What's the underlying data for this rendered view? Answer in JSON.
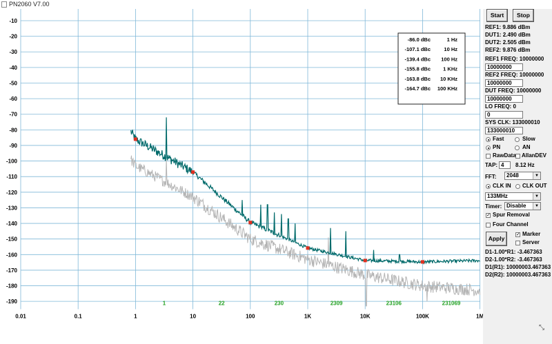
{
  "app": {
    "title": "PN2060 V7.00"
  },
  "plot": {
    "y_ticks": [
      "-10",
      "-20",
      "-30",
      "-40",
      "-50",
      "-60",
      "-70",
      "-80",
      "-90",
      "-100",
      "-110",
      "-120",
      "-130",
      "-140",
      "-150",
      "-160",
      "-170",
      "-180",
      "-190"
    ],
    "x_ticks": [
      "0.01",
      "0.1",
      "1",
      "10",
      "100",
      "1K",
      "10K",
      "100K",
      "1M"
    ],
    "green_labels": [
      "1",
      "22",
      "230",
      "2309",
      "23106",
      "231069"
    ],
    "table": [
      {
        "value": "-86.0 dBc",
        "freq": "1 Hz"
      },
      {
        "value": "-107.1 dBc",
        "freq": "10 Hz"
      },
      {
        "value": "-139.4 dBc",
        "freq": "100 Hz"
      },
      {
        "value": "-155.8 dBc",
        "freq": "1 KHz"
      },
      {
        "value": "-163.8 dBc",
        "freq": "10 KHz"
      },
      {
        "value": "-164.7 dBc",
        "freq": "100 KHz"
      }
    ],
    "colors": {
      "trace": "#006a6a",
      "ref_trace": "#b4b4b4",
      "grid": "#7fb8d8",
      "marker": "#e03020",
      "green": "#20a020"
    }
  },
  "panel": {
    "start_label": "Start",
    "stop_label": "Stop",
    "ref1": "REF1: 9.886 dBm",
    "dut1": "DUT1: 2.490 dBm",
    "dut2": "DUT2: 2.505 dBm",
    "ref2": "REF2: 9.876 dBm",
    "ref1_freq_label": "REF1 FREQ: 10000000",
    "ref1_freq_value": "10000000",
    "ref2_freq_label": "REF2 FREQ: 10000000",
    "ref2_freq_value": "10000000",
    "dut_freq_label": "DUT  FREQ: 10000000",
    "dut_freq_value": "10000000",
    "lo_freq_label": "LO FREQ: 0",
    "lo_freq_value": "0",
    "sys_clk_label": "SYS CLK: 133000010",
    "sys_clk_value": "133000010",
    "fast": "Fast",
    "slow": "Slow",
    "pn": "PN",
    "an": "AN",
    "rawdata": "RawData",
    "allandev": "AllanDEV",
    "tap_label": "TAP:",
    "tap_value": "4",
    "tap_hz": "8.12 Hz",
    "fft_label": "FFT:",
    "fft_value": "2048",
    "clk_in": "CLK IN",
    "clk_out": "CLK OUT",
    "clk_value": "133MHz",
    "timer_label": "Timer:",
    "timer_value": "Disable",
    "spur_removal": "Spur Removal",
    "four_channel": "Four Channel",
    "apply_label": "Apply",
    "marker": "Marker",
    "server": "Server",
    "d1": "D1-1.00*R1: -3.467363",
    "d2": "D2-1.00*R2: -3.467363",
    "d1r1": "D1(R1): 10000003.467363",
    "d2r2": "D2(R2): 10000003.467363"
  }
}
